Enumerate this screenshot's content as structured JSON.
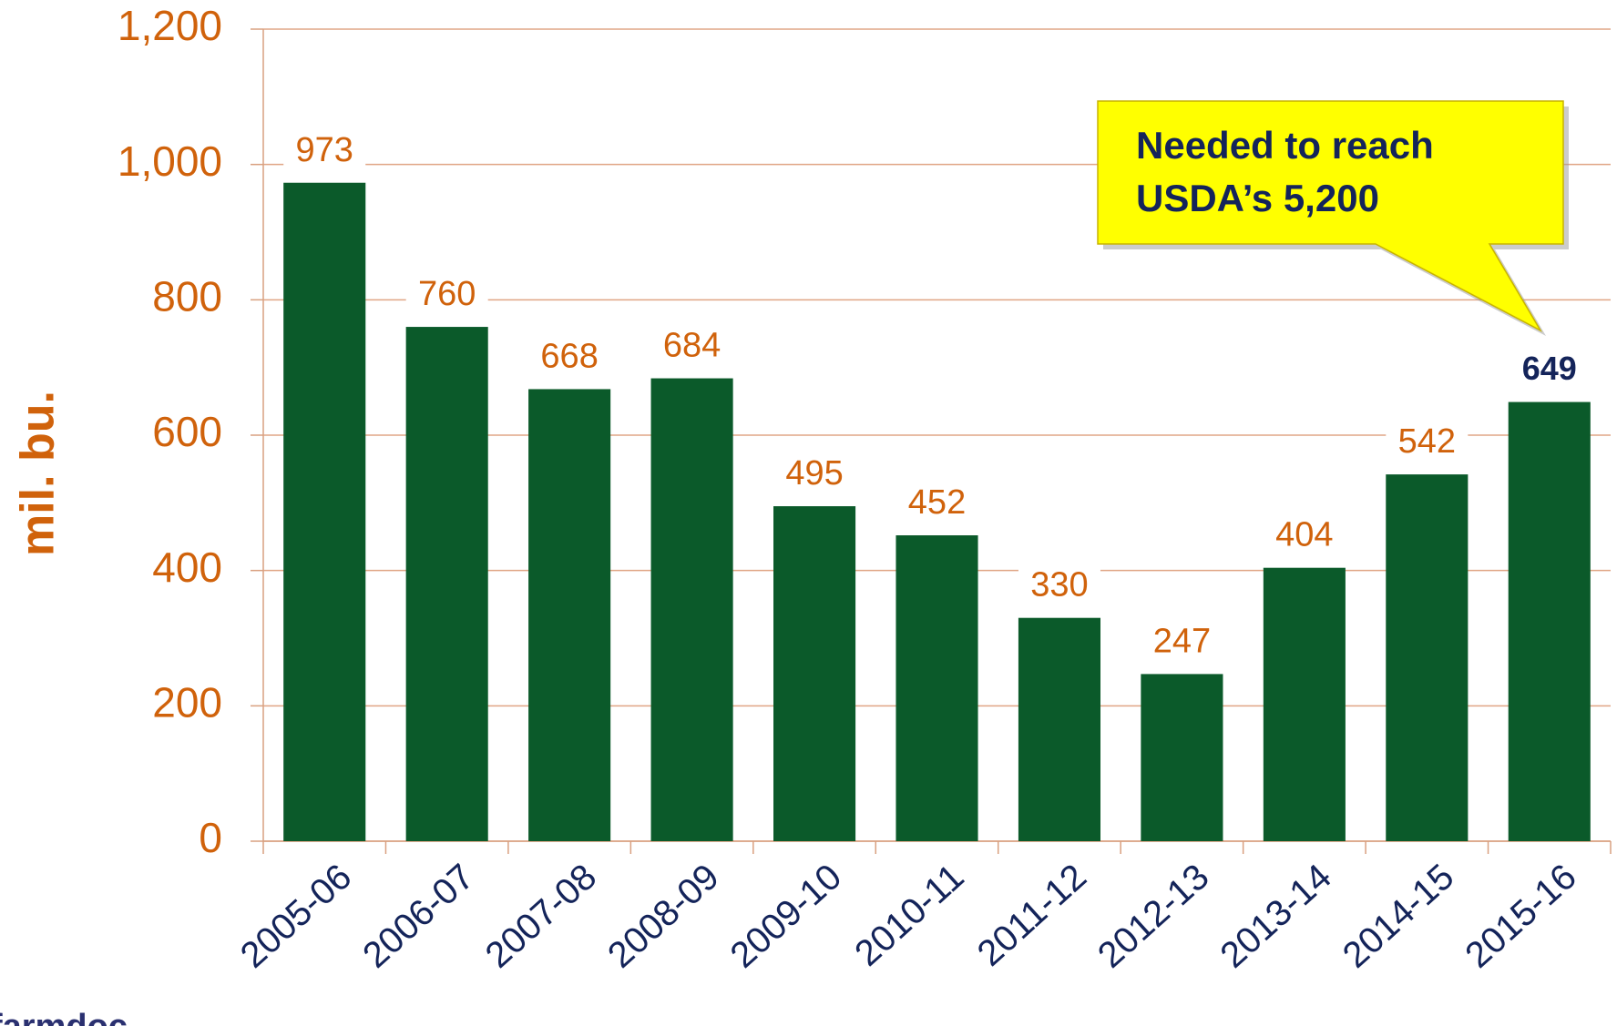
{
  "chart_data": {
    "type": "bar",
    "y_label": "mil. bu.",
    "categories": [
      "2005-06",
      "2006-07",
      "2007-08",
      "2008-09",
      "2009-10",
      "2010-11",
      "2011-12",
      "2012-13",
      "2013-14",
      "2014-15",
      "2015-16"
    ],
    "values": [
      973,
      760,
      668,
      684,
      495,
      452,
      330,
      247,
      404,
      542,
      649
    ],
    "color": "#0b5a2a",
    "value_label_colors": [
      "#d0620b",
      "#d0620b",
      "#d0620b",
      "#d0620b",
      "#d0620b",
      "#d0620b",
      "#d0620b",
      "#d0620b",
      "#d0620b",
      "#d0620b",
      "#14245a"
    ],
    "ylim": [
      0,
      1200
    ],
    "yticks": [
      0,
      200,
      400,
      600,
      800,
      {
        "value": 1000,
        "label": "1,000"
      },
      {
        "value": 1200,
        "label": "1,200"
      }
    ],
    "grid": true,
    "annotation": [
      "Needed to reach",
      "USDA’s 5,200"
    ],
    "logo": "farmdoc"
  }
}
